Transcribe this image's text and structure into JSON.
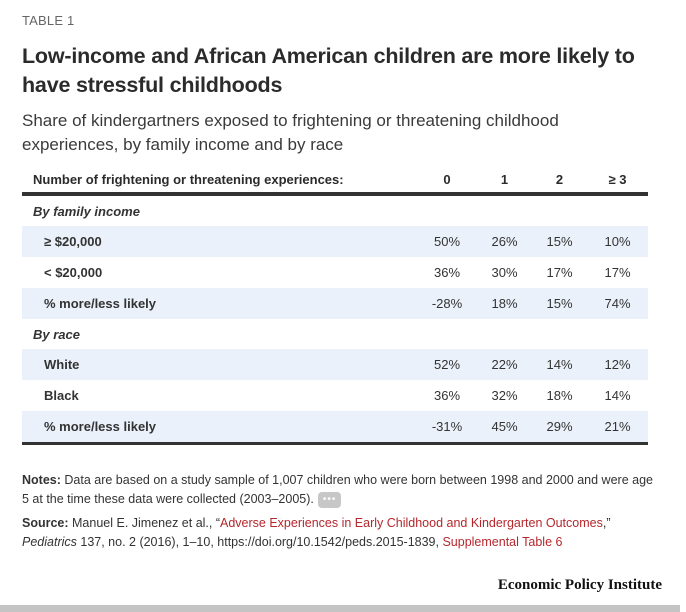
{
  "table_label": "TABLE 1",
  "title": "Low-income and African American children are more likely to have stressful childhoods",
  "subtitle": "Share of kindergartners exposed to frightening or threatening childhood experiences, by family income and by race",
  "table": {
    "header": {
      "label": "Number of frightening or threatening experiences:",
      "columns": [
        "0",
        "1",
        "2",
        "≥ 3"
      ]
    },
    "sections": [
      {
        "title": "By family income",
        "rows": [
          {
            "label": "≥ $20,000",
            "values": [
              "50%",
              "26%",
              "15%",
              "10%"
            ]
          },
          {
            "label": "< $20,000",
            "values": [
              "36%",
              "30%",
              "17%",
              "17%"
            ]
          },
          {
            "label": "% more/less likely",
            "values": [
              "-28%",
              "18%",
              "15%",
              "74%"
            ]
          }
        ]
      },
      {
        "title": "By race",
        "rows": [
          {
            "label": "White",
            "values": [
              "52%",
              "22%",
              "14%",
              "12%"
            ]
          },
          {
            "label": "Black",
            "values": [
              "36%",
              "32%",
              "18%",
              "14%"
            ]
          },
          {
            "label": "% more/less likely",
            "values": [
              "-31%",
              "45%",
              "29%",
              "21%"
            ]
          }
        ]
      }
    ]
  },
  "notes": {
    "label": "Notes:",
    "text": " Data are based on a study sample of 1,007 children who were born between 1998 and 2000 and were age 5 at the time these data were collected (2003–2005).",
    "more_button": "•••"
  },
  "source": {
    "label": "Source:",
    "authors": " Manuel E. Jimenez et al., “",
    "article_link": "Adverse Experiences in Early Childhood and Kindergarten Outcomes",
    "after_link": ",” ",
    "journal": "Pediatrics",
    "citation": " 137, no. 2 (2016), 1–10, https://doi.org/10.1542/peds.2015-1839, ",
    "supplement_link": "Supplemental Table 6"
  },
  "brand": "Economic Policy Institute",
  "colors": {
    "accent_link": "#b5272d",
    "row_shade": "#eaf1fa",
    "rule": "#333333"
  }
}
